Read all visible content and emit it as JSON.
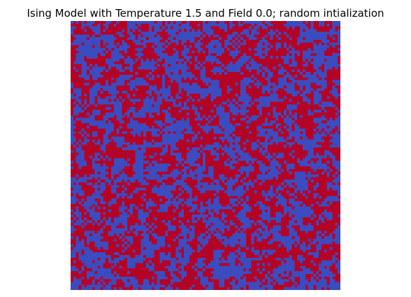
{
  "chart_data": {
    "type": "heatmap",
    "title": "Ising Model with Temperature 1.5 and Field 0.0; random intialization",
    "xlabel": "",
    "ylabel": "",
    "axes_visible": false,
    "grid": false,
    "legend": "none",
    "lattice": {
      "rows": 100,
      "cols": 100,
      "states": [
        -1,
        1
      ],
      "up_fraction": 0.5
    },
    "colormap": {
      "-1": "#3b4cc0",
      "1": "#b40426"
    }
  }
}
